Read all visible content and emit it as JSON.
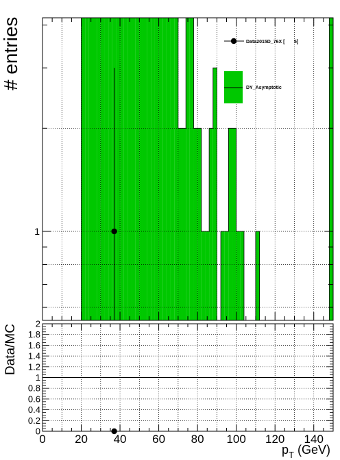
{
  "chart_data": [
    {
      "type": "bar",
      "ylabel": "# entries",
      "y_scale": "log",
      "xlim": [
        0,
        150
      ],
      "grid": true,
      "legend_position": "top-right",
      "yticks": [
        {
          "value": 1,
          "label": "1"
        }
      ],
      "series": [
        {
          "name": "DY_Asymptotic",
          "kind": "stacked-histogram",
          "color": "#00c800",
          "bin_edges": [
            20,
            22,
            24,
            26,
            28,
            30,
            32,
            34,
            36,
            38,
            40,
            42,
            44,
            46,
            48,
            50,
            52,
            54,
            56,
            58,
            60,
            62,
            64,
            66,
            68,
            70,
            72,
            74,
            76,
            78,
            80,
            82,
            84,
            86,
            88,
            90,
            92,
            94,
            96,
            98,
            100,
            102,
            104,
            106,
            108,
            110,
            112,
            114,
            116,
            118,
            120,
            122,
            124,
            126,
            128,
            130,
            132,
            134,
            136,
            138,
            140,
            142,
            144,
            146,
            148,
            150
          ],
          "values": [
            10,
            10,
            10,
            10,
            10,
            10,
            10,
            10,
            10,
            10,
            10,
            10,
            10,
            10,
            10,
            10,
            10,
            10,
            10,
            10,
            10,
            10,
            10,
            10,
            10,
            2,
            2,
            10,
            10,
            2,
            2,
            1,
            1,
            2,
            3,
            0.4,
            1,
            1,
            2,
            2,
            1,
            1,
            0.4,
            0.4,
            0.4,
            1,
            0.4,
            0.4,
            0.4,
            0.4,
            0.4,
            0.4,
            0.4,
            0.4,
            0.4,
            0.4,
            0.4,
            0.4,
            0.4,
            0.4,
            0.4,
            0.4,
            0.4,
            0.4,
            10
          ]
        },
        {
          "name": "Data2015D_76X [       5]",
          "kind": "points",
          "color": "#000000",
          "points": [
            {
              "x": 37,
              "y": 1,
              "yerr_low": 1,
              "yerr_high": 2
            }
          ]
        }
      ]
    },
    {
      "type": "scatter",
      "xlabel": "p_T (GeV)",
      "ylabel": "Data/MC",
      "xlim": [
        0,
        150
      ],
      "ylim": [
        0,
        2
      ],
      "grid": true,
      "reference_line": 1,
      "xticks": [
        0,
        20,
        40,
        60,
        80,
        100,
        120,
        140
      ],
      "yticks": [
        "0",
        "0.2",
        "0.4",
        "0.6",
        "0.8",
        "1",
        "1.2",
        "1.4",
        "1.6",
        "1.8",
        "2"
      ],
      "points": [
        {
          "x": 37,
          "y": 0
        }
      ]
    }
  ]
}
